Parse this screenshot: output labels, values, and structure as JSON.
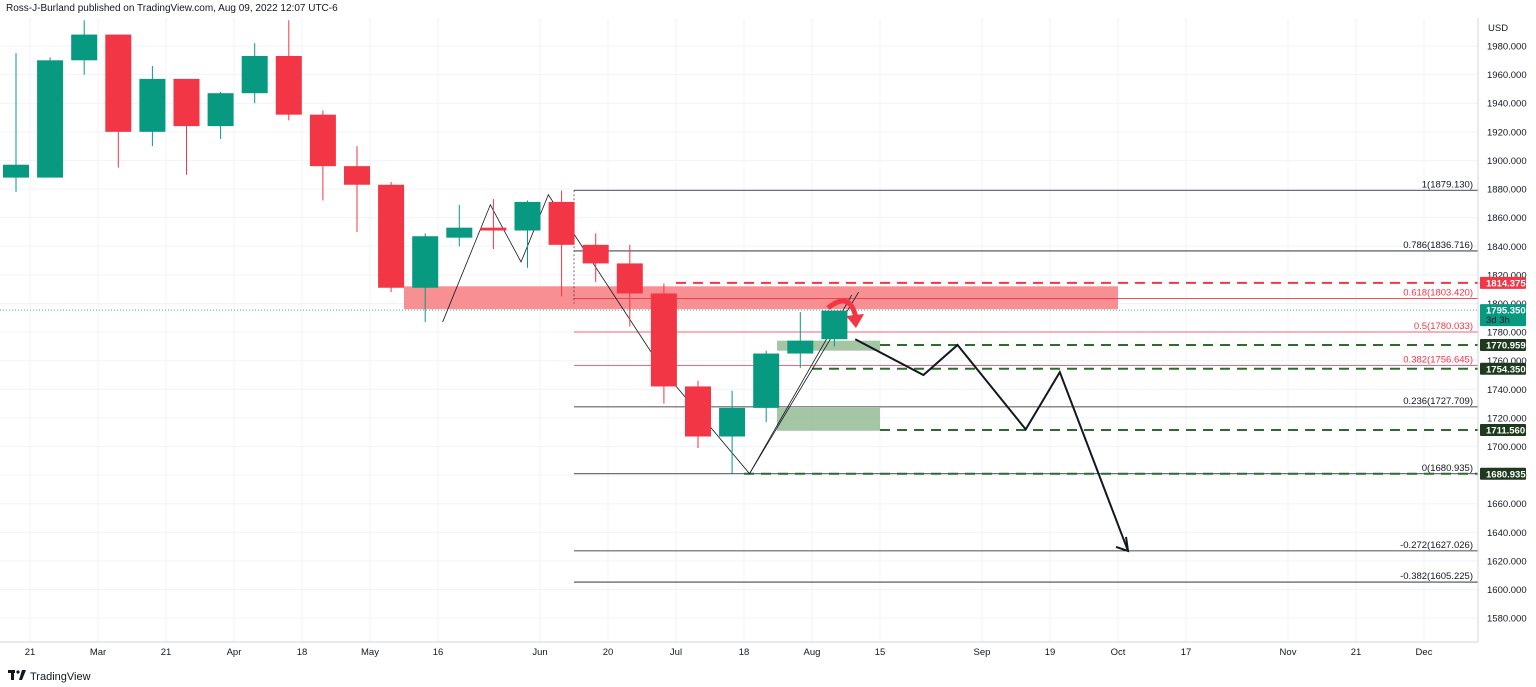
{
  "header": {
    "text": "Ross-J-Burland published on TradingView.com, Aug 09, 2022 12:07 UTC-6"
  },
  "footer": {
    "logo_icon": "tradingview-logo-icon",
    "brand": "TradingView"
  },
  "colors": {
    "up": "#089981",
    "down": "#f23645",
    "zone": "#f77c80",
    "green_zone": "#8fb88f",
    "green_dash": "#2e6b2e",
    "fib_black": "#131722",
    "fib_red": "#f23645"
  },
  "chart_data": {
    "type": "candlestick",
    "title": "",
    "currency": "USD",
    "ylim": [
      1560,
      2000
    ],
    "y_ticks": [
      1580,
      1600,
      1620,
      1640,
      1660,
      1680,
      1700,
      1720,
      1740,
      1760,
      1780,
      1800,
      1820,
      1840,
      1860,
      1880,
      1900,
      1920,
      1940,
      1960,
      1980
    ],
    "x_labels": [
      "21",
      "Mar",
      "21",
      "Apr",
      "18",
      "May",
      "16",
      "Jun",
      "20",
      "Jul",
      "18",
      "Aug",
      "15",
      "Sep",
      "19",
      "Oct",
      "17",
      "Nov",
      "21",
      "Dec"
    ],
    "candles": [
      {
        "o": 1888,
        "h": 1975,
        "l": 1878,
        "c": 1897
      },
      {
        "o": 1888,
        "h": 1972,
        "l": 1888,
        "c": 1970
      },
      {
        "o": 1970,
        "h": 1998,
        "l": 1960,
        "c": 1988
      },
      {
        "o": 1988,
        "h": 1988,
        "l": 1895,
        "c": 1920
      },
      {
        "o": 1920,
        "h": 1966,
        "l": 1910,
        "c": 1957
      },
      {
        "o": 1957,
        "h": 1957,
        "l": 1890,
        "c": 1924
      },
      {
        "o": 1924,
        "h": 1948,
        "l": 1915,
        "c": 1947
      },
      {
        "o": 1947,
        "h": 1982,
        "l": 1940,
        "c": 1973
      },
      {
        "o": 1973,
        "h": 1998,
        "l": 1928,
        "c": 1932
      },
      {
        "o": 1932,
        "h": 1935,
        "l": 1872,
        "c": 1896
      },
      {
        "o": 1896,
        "h": 1910,
        "l": 1850,
        "c": 1883
      },
      {
        "o": 1883,
        "h": 1885,
        "l": 1808,
        "c": 1811
      },
      {
        "o": 1811,
        "h": 1849,
        "l": 1787,
        "c": 1847
      },
      {
        "o": 1846,
        "h": 1869,
        "l": 1840,
        "c": 1853
      },
      {
        "o": 1853,
        "h": 1873,
        "l": 1838,
        "c": 1851
      },
      {
        "o": 1851,
        "h": 1872,
        "l": 1825,
        "c": 1871
      },
      {
        "o": 1871,
        "h": 1879,
        "l": 1805,
        "c": 1841
      },
      {
        "o": 1841,
        "h": 1849,
        "l": 1815,
        "c": 1828
      },
      {
        "o": 1828,
        "h": 1841,
        "l": 1784,
        "c": 1807
      },
      {
        "o": 1807,
        "h": 1814,
        "l": 1730,
        "c": 1742
      },
      {
        "o": 1742,
        "h": 1746,
        "l": 1699,
        "c": 1707
      },
      {
        "o": 1707,
        "h": 1739,
        "l": 1681,
        "c": 1727
      },
      {
        "o": 1727,
        "h": 1767,
        "l": 1717,
        "c": 1765
      },
      {
        "o": 1765,
        "h": 1794,
        "l": 1755,
        "c": 1774
      },
      {
        "o": 1775,
        "h": 1795,
        "l": 1770,
        "c": 1795
      }
    ],
    "fib_levels": [
      {
        "label": "1(1879.130)",
        "value": 1879.13,
        "color": "black"
      },
      {
        "label": "0.786(1836.716)",
        "value": 1836.716,
        "color": "black"
      },
      {
        "label": "0.618(1803.420)",
        "value": 1803.42,
        "color": "red"
      },
      {
        "label": "0.5(1780.033)",
        "value": 1780.033,
        "color": "red"
      },
      {
        "label": "0.382(1756.645)",
        "value": 1756.645,
        "color": "red"
      },
      {
        "label": "0.236(1727.709)",
        "value": 1727.709,
        "color": "black"
      },
      {
        "label": "0(1680.935)",
        "value": 1680.935,
        "color": "black"
      },
      {
        "label": "-0.272(1627.026)",
        "value": 1627.026,
        "color": "black"
      },
      {
        "label": "-0.382(1605.225)",
        "value": 1605.225,
        "color": "black"
      }
    ],
    "price_tags": [
      {
        "label": "1814.375",
        "value": 1814.375,
        "kind": "red"
      },
      {
        "label": "1795.350",
        "sub": "3d 3h",
        "value": 1795.35,
        "kind": "current"
      },
      {
        "label": "1770.959",
        "value": 1770.959,
        "kind": "dark"
      },
      {
        "label": "1754.350",
        "value": 1754.35,
        "kind": "dark"
      },
      {
        "label": "1711.560",
        "value": 1711.56,
        "kind": "dark"
      },
      {
        "label": "1680.935",
        "value": 1680.935,
        "kind": "dark"
      }
    ],
    "resistance_zone": {
      "from": 1796,
      "to": 1812
    },
    "support_zones": [
      {
        "from": 1767,
        "to": 1774
      },
      {
        "from": 1711,
        "to": 1727
      }
    ],
    "projection_path": [
      {
        "week": 24.2,
        "value": 1775
      },
      {
        "week": 26.2,
        "value": 1750
      },
      {
        "week": 27.2,
        "value": 1771
      },
      {
        "week": 29.2,
        "value": 1712
      },
      {
        "week": 30.2,
        "value": 1752
      },
      {
        "week": 32.2,
        "value": 1627
      }
    ],
    "zigzag": [
      {
        "week": 12.1,
        "value": 1787
      },
      {
        "week": 13.5,
        "value": 1869
      },
      {
        "week": 14.4,
        "value": 1829
      },
      {
        "week": 15.2,
        "value": 1876
      },
      {
        "week": 18.6,
        "value": 1752
      },
      {
        "week": 21.1,
        "value": 1681
      },
      {
        "week": 24.1,
        "value": 1806
      }
    ]
  }
}
